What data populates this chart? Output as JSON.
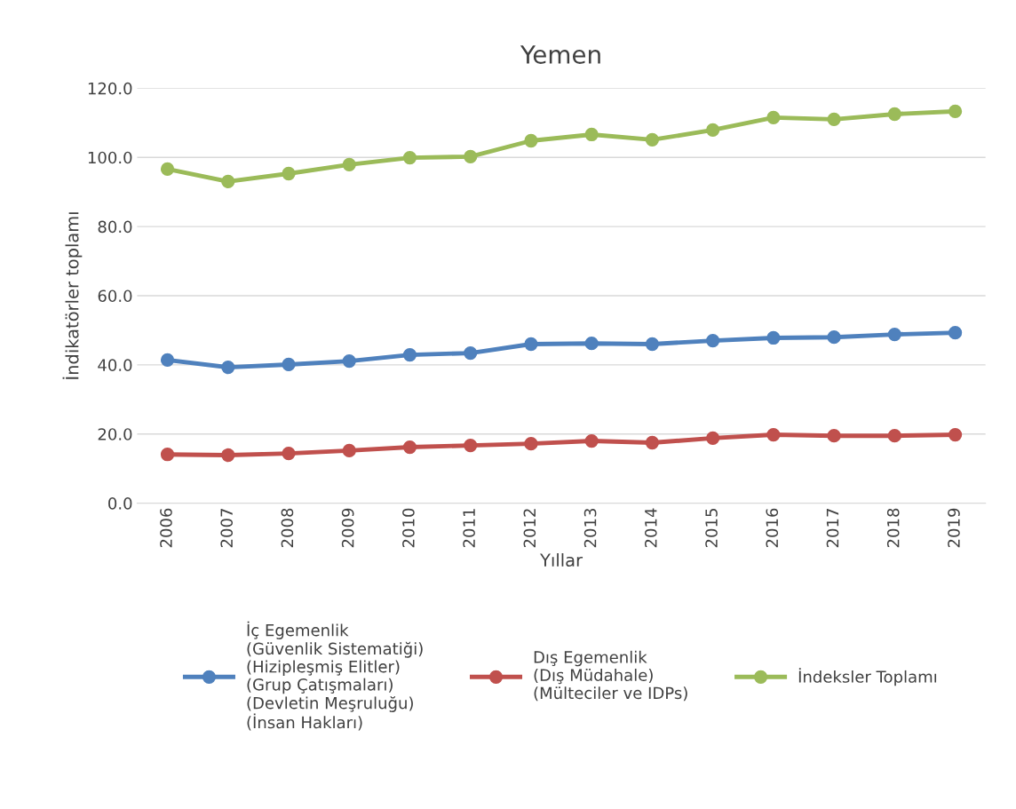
{
  "chart_data": {
    "type": "line",
    "title": "Yemen",
    "xlabel": "Yıllar",
    "ylabel": "İndikatörler toplamı",
    "categories": [
      "2006",
      "2007",
      "2008",
      "2009",
      "2010",
      "2011",
      "2012",
      "2013",
      "2014",
      "2015",
      "2016",
      "2017",
      "2018",
      "2019"
    ],
    "series": [
      {
        "name": "İç Egemenlik\n(Güvenlik Sistematiği)\n(Hizipleşmiş Elitler)\n(Grup Çatışmaları)\n(Devletin Meşruluğu)\n(İnsan Hakları)",
        "color": "#4f81bd",
        "values": [
          41.4,
          39.3,
          40.1,
          41.1,
          42.9,
          43.4,
          46.0,
          46.2,
          46.0,
          47.0,
          47.8,
          48.0,
          48.8,
          49.3
        ]
      },
      {
        "name": "Dış Egemenlik\n(Dış Müdahale)\n(Mülteciler ve IDPs)",
        "color": "#c0504d",
        "values": [
          14.1,
          13.9,
          14.4,
          15.2,
          16.2,
          16.7,
          17.2,
          18.0,
          17.5,
          18.8,
          19.8,
          19.5,
          19.5,
          19.8
        ]
      },
      {
        "name": "İndeksler Toplamı",
        "color": "#9bbb59",
        "values": [
          96.6,
          93.0,
          95.3,
          97.9,
          99.9,
          100.2,
          104.8,
          106.6,
          105.1,
          107.9,
          111.5,
          111.0,
          112.5,
          113.3
        ]
      }
    ],
    "ylim": [
      0,
      120
    ],
    "yticks": [
      {
        "value": 0,
        "label": "0.0"
      },
      {
        "value": 20,
        "label": "20.0"
      },
      {
        "value": 40,
        "label": "40.0"
      },
      {
        "value": 60,
        "label": "60.0"
      },
      {
        "value": 80,
        "label": "80.0"
      },
      {
        "value": 100,
        "label": "100.0"
      },
      {
        "value": 120,
        "label": "120.0"
      }
    ],
    "grid": "y",
    "legend": "bottom",
    "marker": "circle",
    "line_style": "solid"
  }
}
